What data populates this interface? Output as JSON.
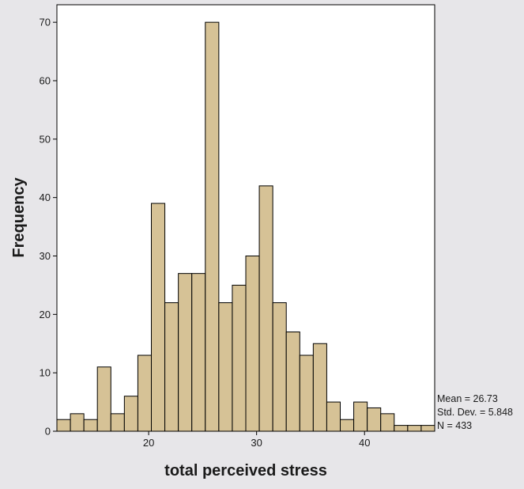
{
  "chart_data": {
    "type": "bar",
    "xlabel": "total perceived stress",
    "ylabel": "Frequency",
    "xlim": [
      11.5,
      46.5
    ],
    "ylim": [
      0,
      73
    ],
    "x_ticks": [
      20,
      30,
      40
    ],
    "y_ticks": [
      0,
      10,
      20,
      30,
      40,
      50,
      60,
      70
    ],
    "bin_width": 1.25,
    "bin_centers": [
      12.125,
      13.375,
      14.625,
      15.875,
      17.125,
      18.375,
      19.625,
      20.875,
      22.125,
      23.375,
      24.625,
      25.875,
      27.125,
      28.375,
      29.625,
      30.875,
      32.125,
      33.375,
      34.625,
      35.875,
      37.125,
      38.375,
      39.625,
      40.875,
      42.125,
      43.375,
      44.625,
      45.875
    ],
    "values": [
      2,
      3,
      2,
      11,
      3,
      6,
      13,
      39,
      22,
      27,
      27,
      70,
      22,
      25,
      30,
      42,
      22,
      17,
      13,
      15,
      5,
      2,
      5,
      4,
      3,
      1,
      1,
      1
    ],
    "bar_color": "#d6c296",
    "stats": {
      "mean": "Mean = 26.73",
      "std_dev": "Std. Dev. = 5.848",
      "n": "N = 433"
    }
  }
}
